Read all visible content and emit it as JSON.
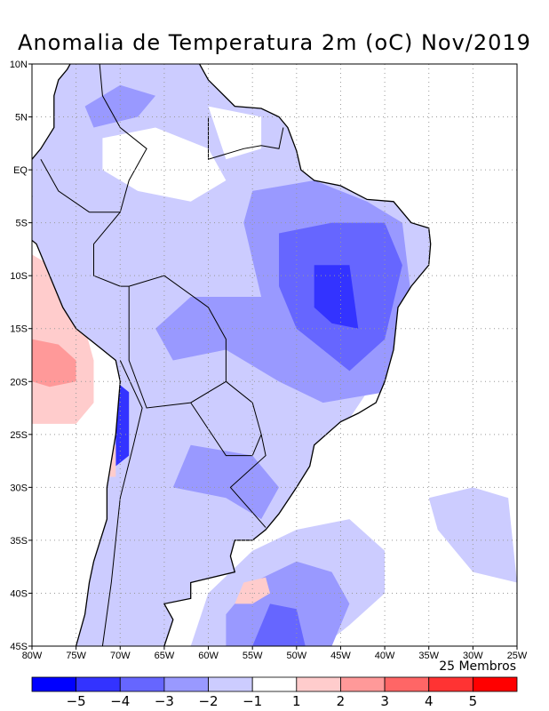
{
  "title": "Anomalia de Temperatura 2m (oC) Nov/2019",
  "members_label": "25 Membros",
  "lat_labels": [
    "10N",
    "5N",
    "EQ",
    "5S",
    "10S",
    "15S",
    "20S",
    "25S",
    "30S",
    "35S",
    "40S",
    "45S"
  ],
  "lon_labels": [
    "80W",
    "75W",
    "70W",
    "65W",
    "60W",
    "55W",
    "50W",
    "45W",
    "40W",
    "35W",
    "30W",
    "25W"
  ],
  "colorbar": {
    "colors": [
      "#0000ff",
      "#3333ff",
      "#6666ff",
      "#9999ff",
      "#ccccff",
      "#ffffff",
      "#ffcccc",
      "#ff9999",
      "#ff6666",
      "#ff3333",
      "#ff0000"
    ],
    "labels": [
      "-5",
      "-4",
      "-3",
      "-2",
      "-1",
      "1",
      "2",
      "3",
      "4",
      "5"
    ]
  },
  "map_extent": {
    "lon": [
      -80,
      -25
    ],
    "lat": [
      -45,
      10
    ]
  }
}
